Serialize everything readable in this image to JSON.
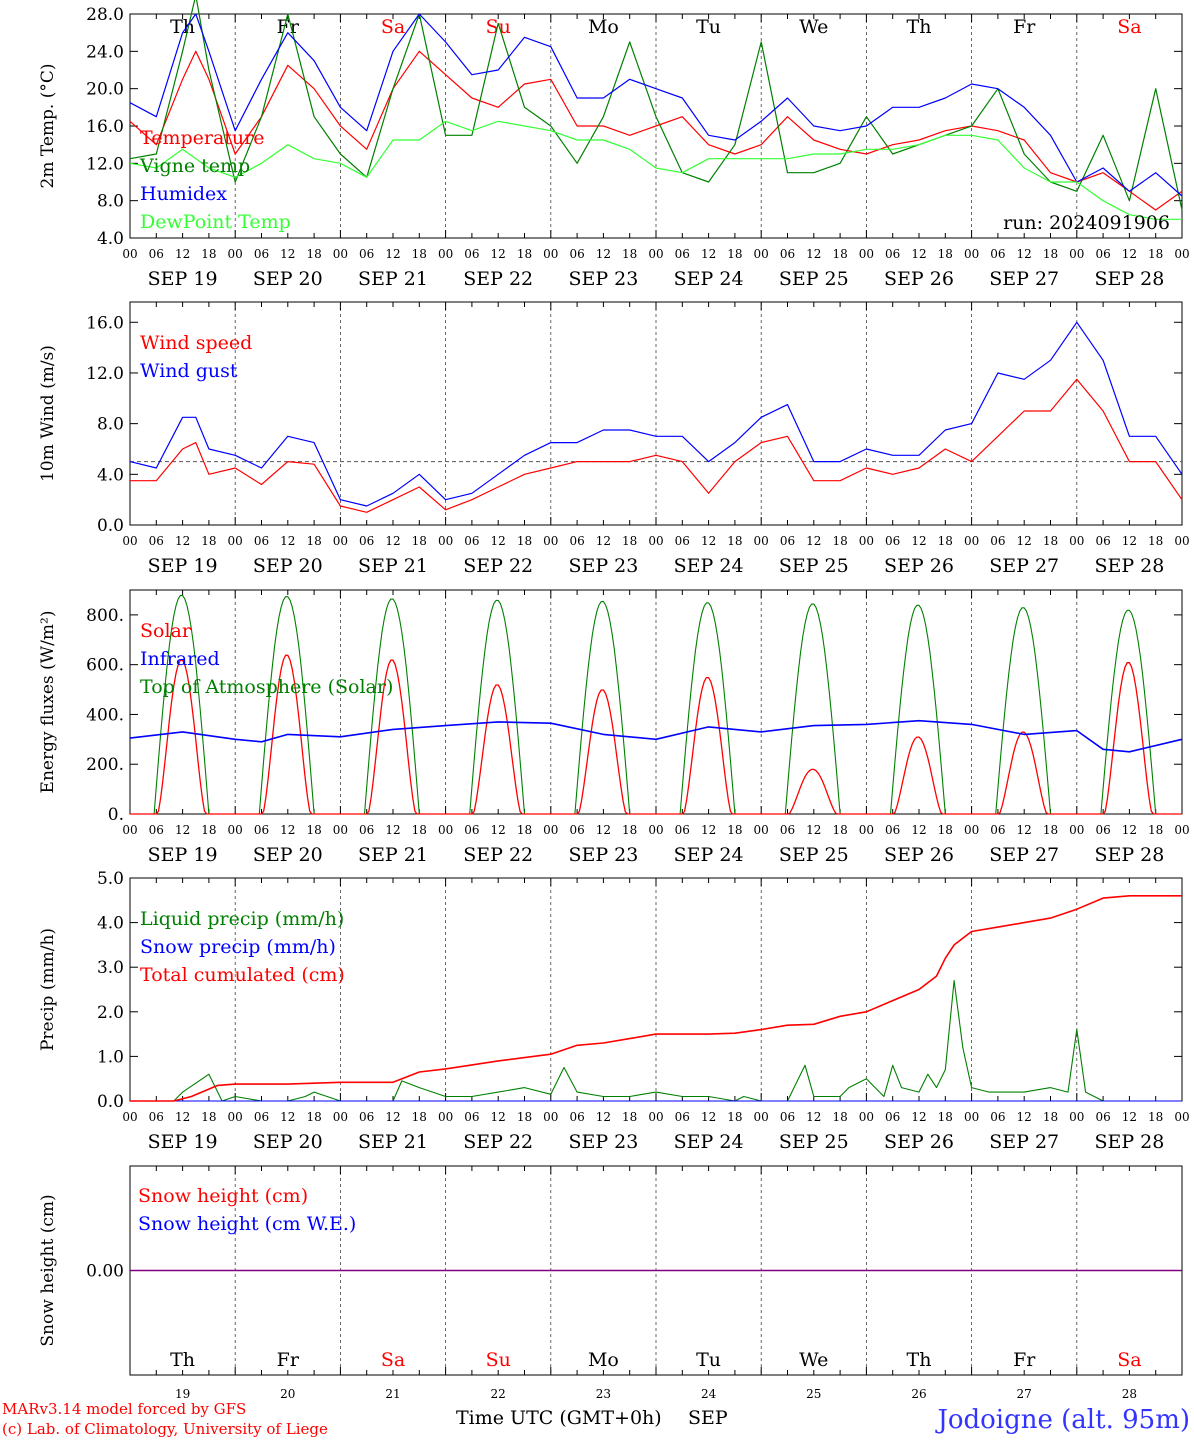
{
  "colors": {
    "red": "#ff0000",
    "green": "#008000",
    "light_green": "#33ff33",
    "blue": "#0000ff",
    "black": "#000000",
    "purple": "#800080",
    "station": "#3333ff"
  },
  "days": {
    "abbr": [
      "Th",
      "Fr",
      "Sa",
      "Su",
      "Mo",
      "Tu",
      "We",
      "Th",
      "Fr",
      "Sa"
    ],
    "weekend": [
      false,
      false,
      true,
      true,
      false,
      false,
      false,
      false,
      false,
      true
    ],
    "dates": [
      "SEP 19",
      "SEP 20",
      "SEP 21",
      "SEP 22",
      "SEP 23",
      "SEP 24",
      "SEP 25",
      "SEP 26",
      "SEP 27",
      "SEP 28"
    ],
    "numbers": [
      "19",
      "20",
      "21",
      "22",
      "23",
      "24",
      "25",
      "26",
      "27",
      "28"
    ]
  },
  "hour_ticks": [
    "00",
    "06",
    "12",
    "18"
  ],
  "hour_end": "00",
  "footer": {
    "credit_line1": "MARv3.14 model forced by GFS",
    "credit_line2": "(c) Lab. of Climatology, University of Liege",
    "xlabel": "Time UTC (GMT+0h)",
    "month": "SEP",
    "station": "Jodoigne (alt. 95m)"
  },
  "chart_data": [
    {
      "id": "temperature",
      "type": "line",
      "ylabel": "2m Temp. (°C)",
      "ylim": [
        4.0,
        28.0
      ],
      "yticks": [
        "4.0",
        "8.0",
        "12.0",
        "16.0",
        "20.0",
        "24.0",
        "28.0"
      ],
      "x_range_hours": [
        0,
        240
      ],
      "annotation": "run: 2024091906",
      "series": [
        {
          "name": "Temperature",
          "color": "#ff0000",
          "x": [
            0,
            6,
            12,
            15,
            18,
            24,
            30,
            36,
            42,
            48,
            54,
            60,
            66,
            72,
            78,
            84,
            90,
            96,
            102,
            108,
            114,
            120,
            126,
            132,
            138,
            144,
            150,
            156,
            162,
            168,
            174,
            180,
            186,
            192,
            198,
            204,
            210,
            216,
            222,
            228,
            234,
            240
          ],
          "y": [
            16.5,
            14,
            21,
            24,
            21,
            13,
            17,
            22.5,
            20,
            16,
            13.5,
            20,
            24,
            21.5,
            19,
            18,
            20.5,
            21,
            16,
            16,
            15,
            16,
            17,
            14,
            13,
            14,
            17,
            14.5,
            13.5,
            13,
            14,
            14.5,
            15.5,
            16,
            15.5,
            14.5,
            11,
            10,
            11,
            9,
            7,
            9
          ]
        },
        {
          "name": "Vigne temp",
          "color": "#008000",
          "x": [
            0,
            6,
            12,
            15,
            18,
            24,
            30,
            36,
            42,
            48,
            54,
            60,
            66,
            72,
            78,
            84,
            90,
            96,
            102,
            108,
            114,
            120,
            126,
            132,
            138,
            144,
            150,
            156,
            162,
            168,
            174,
            180,
            186,
            192,
            198,
            204,
            210,
            216,
            222,
            228,
            234,
            240
          ],
          "y": [
            12.5,
            13,
            24,
            30,
            22,
            10,
            17,
            28,
            17,
            13,
            10.5,
            20,
            28,
            15,
            15,
            27,
            18,
            16,
            12,
            17,
            25,
            17,
            11,
            10,
            14,
            25,
            11,
            11,
            12,
            17,
            13,
            14,
            15,
            16,
            20,
            13,
            10,
            9,
            15,
            8,
            20,
            7
          ]
        },
        {
          "name": "Humidex",
          "color": "#0000ff",
          "x": [
            0,
            6,
            12,
            15,
            18,
            24,
            30,
            36,
            42,
            48,
            54,
            60,
            66,
            72,
            78,
            84,
            90,
            96,
            102,
            108,
            114,
            120,
            126,
            132,
            138,
            144,
            150,
            156,
            162,
            168,
            174,
            180,
            186,
            192,
            198,
            204,
            210,
            216,
            222,
            228,
            234,
            240
          ],
          "y": [
            18.5,
            17,
            26,
            28,
            24,
            15.5,
            21,
            26,
            23,
            18,
            15.5,
            24,
            28,
            25,
            21.5,
            22,
            25.5,
            24.5,
            19,
            19,
            21,
            20,
            19,
            15,
            14.5,
            16.5,
            19,
            16,
            15.5,
            16,
            18,
            18,
            19,
            20.5,
            20,
            18,
            15,
            10,
            11.5,
            9,
            11,
            8.5
          ]
        },
        {
          "name": "DewPoint Temp",
          "color": "#33ff33",
          "x": [
            0,
            6,
            12,
            18,
            24,
            30,
            36,
            42,
            48,
            54,
            60,
            66,
            72,
            78,
            84,
            90,
            96,
            102,
            108,
            114,
            120,
            126,
            132,
            138,
            144,
            150,
            156,
            162,
            168,
            174,
            180,
            186,
            192,
            198,
            204,
            210,
            216,
            222,
            228,
            234,
            240
          ],
          "y": [
            12,
            11.5,
            13.5,
            11.5,
            10.5,
            12,
            14,
            12.5,
            12,
            10.5,
            14.5,
            14.5,
            16.5,
            15.5,
            16.5,
            16,
            15.5,
            14.5,
            14.5,
            13.5,
            11.5,
            11,
            12.5,
            12.5,
            12.5,
            12.5,
            13,
            13,
            13.5,
            13.5,
            14,
            15,
            15,
            14.5,
            11.5,
            10,
            10,
            8,
            6.5,
            6,
            6
          ]
        }
      ]
    },
    {
      "id": "wind",
      "type": "line",
      "ylabel": "10m Wind (m/s)",
      "ylim": [
        0.0,
        17.6
      ],
      "yticks": [
        "0.0",
        "4.0",
        "8.0",
        "12.0",
        "16.0"
      ],
      "reference_line": 5.0,
      "x_range_hours": [
        0,
        240
      ],
      "series": [
        {
          "name": "Wind speed",
          "color": "#ff0000",
          "x": [
            0,
            6,
            12,
            15,
            18,
            24,
            30,
            36,
            42,
            48,
            54,
            60,
            66,
            72,
            78,
            84,
            90,
            96,
            102,
            108,
            114,
            120,
            126,
            132,
            138,
            144,
            150,
            156,
            162,
            168,
            174,
            180,
            186,
            192,
            198,
            204,
            210,
            216,
            222,
            228,
            234,
            240
          ],
          "y": [
            3.5,
            3.5,
            6,
            6.5,
            4,
            4.5,
            3.2,
            5,
            4.8,
            1.5,
            1,
            2,
            3,
            1.2,
            2,
            3,
            4,
            4.5,
            5,
            5,
            5,
            5.5,
            5,
            2.5,
            5,
            6.5,
            7,
            3.5,
            3.5,
            4.5,
            4,
            4.5,
            6,
            5,
            7,
            9,
            9,
            11.5,
            9,
            5,
            5,
            2
          ]
        },
        {
          "name": "Wind gust",
          "color": "#0000ff",
          "x": [
            0,
            6,
            12,
            15,
            18,
            24,
            30,
            36,
            42,
            48,
            54,
            60,
            66,
            72,
            78,
            84,
            90,
            96,
            102,
            108,
            114,
            120,
            126,
            132,
            138,
            144,
            150,
            156,
            162,
            168,
            174,
            180,
            186,
            192,
            198,
            204,
            210,
            216,
            222,
            228,
            234,
            240
          ],
          "y": [
            5,
            4.5,
            8.5,
            8.5,
            6,
            5.5,
            4.5,
            7,
            6.5,
            2,
            1.5,
            2.5,
            4,
            2,
            2.5,
            4,
            5.5,
            6.5,
            6.5,
            7.5,
            7.5,
            7,
            7,
            5,
            6.5,
            8.5,
            9.5,
            5,
            5,
            6,
            5.5,
            5.5,
            7.5,
            8,
            12,
            11.5,
            13,
            16,
            13,
            7,
            7,
            4
          ]
        }
      ]
    },
    {
      "id": "energy",
      "type": "line",
      "ylabel": "Energy fluxes (W/m²)",
      "ylim": [
        0,
        900
      ],
      "yticks": [
        "0.",
        "200.",
        "400.",
        "600.",
        "800."
      ],
      "x_range_hours": [
        0,
        240
      ],
      "solar_peaks": [
        620,
        640,
        620,
        520,
        500,
        550,
        180,
        310,
        330,
        610
      ],
      "toa_peaks": [
        880,
        875,
        865,
        860,
        855,
        850,
        845,
        840,
        830,
        820
      ],
      "daylight_hours": [
        5.5,
        18.0
      ],
      "series": [
        {
          "name": "Solar",
          "color": "#ff0000"
        },
        {
          "name": "Infrared",
          "color": "#0000ff",
          "x": [
            0,
            12,
            24,
            30,
            36,
            48,
            60,
            72,
            84,
            96,
            108,
            120,
            132,
            144,
            156,
            168,
            180,
            192,
            204,
            216,
            222,
            228,
            240
          ],
          "y": [
            305,
            330,
            300,
            290,
            320,
            310,
            340,
            355,
            370,
            365,
            320,
            300,
            350,
            330,
            355,
            360,
            375,
            360,
            320,
            335,
            260,
            250,
            300
          ]
        },
        {
          "name": "Top of Atmosphere (Solar)",
          "color": "#008000"
        }
      ]
    },
    {
      "id": "precip",
      "type": "line",
      "ylabel": "Precip (mm/h)",
      "ylim": [
        0.0,
        5.0
      ],
      "yticks": [
        "0.0",
        "1.0",
        "2.0",
        "3.0",
        "4.0",
        "5.0"
      ],
      "x_range_hours": [
        0,
        240
      ],
      "series": [
        {
          "name": "Liquid precip (mm/h)",
          "color": "#008000",
          "x": [
            0,
            10,
            12,
            15,
            18,
            21,
            24,
            30,
            36,
            40,
            42,
            48,
            60,
            62,
            66,
            72,
            78,
            84,
            90,
            96,
            99,
            102,
            108,
            114,
            120,
            126,
            132,
            138,
            140,
            144,
            150,
            154,
            156,
            160,
            162,
            164,
            168,
            172,
            174,
            176,
            180,
            182,
            184,
            186,
            188,
            190,
            192,
            196,
            204,
            210,
            214,
            216,
            218,
            222,
            228,
            240
          ],
          "y": [
            0,
            0,
            0.2,
            0.4,
            0.6,
            0,
            0.1,
            0,
            0,
            0.1,
            0.2,
            0,
            0,
            0.45,
            0.3,
            0.1,
            0.1,
            0.2,
            0.3,
            0.15,
            0.75,
            0.2,
            0.1,
            0.1,
            0.2,
            0.1,
            0.1,
            0,
            0.1,
            0,
            0,
            0.8,
            0.1,
            0.1,
            0.1,
            0.3,
            0.5,
            0.1,
            0.8,
            0.3,
            0.2,
            0.6,
            0.3,
            0.7,
            2.7,
            1.2,
            0.3,
            0.2,
            0.2,
            0.3,
            0.2,
            1.6,
            0.2,
            0,
            0,
            0
          ]
        },
        {
          "name": "Snow precip (mm/h)",
          "color": "#0000ff",
          "x": [
            0,
            240
          ],
          "y": [
            0,
            0
          ]
        },
        {
          "name": "Total cumulated (cm)",
          "color": "#ff0000",
          "x": [
            0,
            10,
            14,
            20,
            24,
            36,
            48,
            60,
            66,
            72,
            84,
            96,
            102,
            108,
            114,
            120,
            132,
            138,
            144,
            150,
            156,
            162,
            168,
            174,
            180,
            184,
            186,
            188,
            192,
            198,
            204,
            210,
            216,
            222,
            228,
            240
          ],
          "y": [
            0,
            0,
            0.1,
            0.35,
            0.38,
            0.38,
            0.42,
            0.42,
            0.65,
            0.72,
            0.9,
            1.05,
            1.25,
            1.3,
            1.4,
            1.5,
            1.5,
            1.52,
            1.6,
            1.7,
            1.72,
            1.9,
            2.0,
            2.25,
            2.5,
            2.8,
            3.2,
            3.5,
            3.8,
            3.9,
            4.0,
            4.1,
            4.3,
            4.55,
            4.6,
            4.6
          ]
        }
      ]
    },
    {
      "id": "snow",
      "type": "line",
      "ylabel": "Snow height (cm)",
      "ylim": [
        -1,
        1
      ],
      "yticks": [
        "0.00"
      ],
      "x_range_hours": [
        0,
        240
      ],
      "series": [
        {
          "name": "Snow height (cm)",
          "color": "#ff0000",
          "x": [
            0,
            240
          ],
          "y": [
            0,
            0
          ]
        },
        {
          "name": "Snow height (cm W.E.)",
          "color": "#0000ff",
          "x": [
            0,
            240
          ],
          "y": [
            0,
            0
          ]
        }
      ]
    }
  ]
}
